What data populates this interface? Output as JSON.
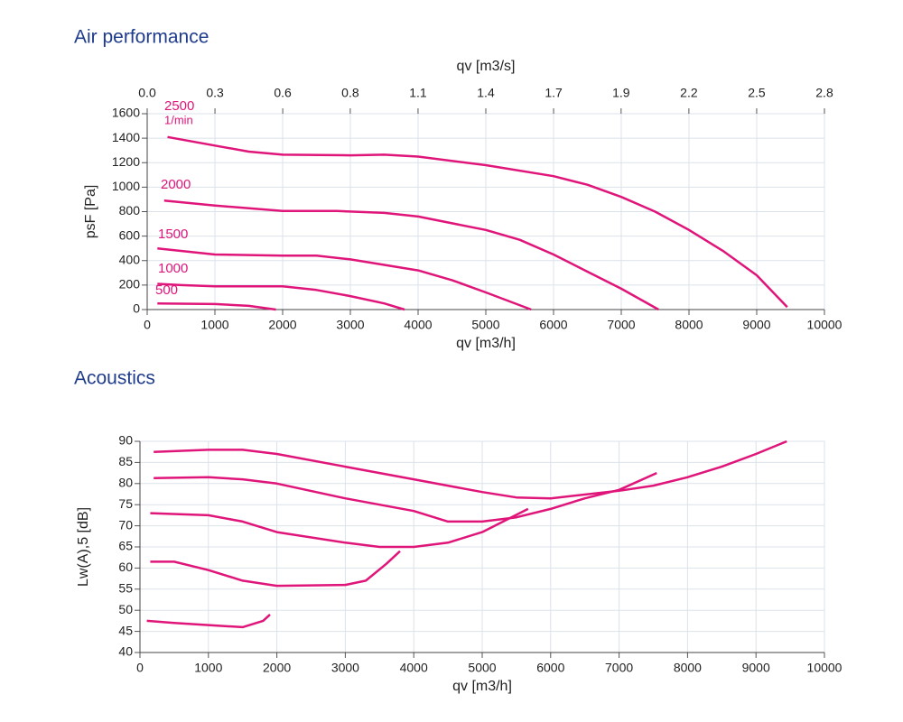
{
  "chart_data": [
    {
      "type": "line",
      "title": "Air performance",
      "x_label": "qv [m3/h]",
      "y_label": "psF [Pa]",
      "x2_label": "qv [m3/s]",
      "unit_label": "1/min",
      "xlim": [
        0,
        10000
      ],
      "xticks": [
        0,
        1000,
        2000,
        3000,
        4000,
        5000,
        6000,
        7000,
        8000,
        9000,
        10000
      ],
      "x2lim": [
        0,
        2.778
      ],
      "x2ticks": [
        {
          "value": 0,
          "label": "0.0"
        },
        {
          "value": 0.278,
          "label": "0.3"
        },
        {
          "value": 0.556,
          "label": "0.6"
        },
        {
          "value": 0.833,
          "label": "0.8"
        },
        {
          "value": 1.111,
          "label": "1.1"
        },
        {
          "value": 1.389,
          "label": "1.4"
        },
        {
          "value": 1.667,
          "label": "1.7"
        },
        {
          "value": 1.944,
          "label": "1.9"
        },
        {
          "value": 2.222,
          "label": "2.2"
        },
        {
          "value": 2.5,
          "label": "2.5"
        },
        {
          "value": 2.778,
          "label": "2.8"
        }
      ],
      "ylim": [
        0,
        1600
      ],
      "yticks": [
        0,
        200,
        400,
        600,
        800,
        1000,
        1200,
        1400,
        1600
      ],
      "grid": true,
      "series": [
        {
          "name": "2500",
          "color": "#e0157a",
          "x": [
            300,
            1000,
            1500,
            2000,
            3000,
            3500,
            4000,
            5000,
            6000,
            6500,
            7000,
            7500,
            8000,
            8500,
            9000,
            9450
          ],
          "values": [
            1410,
            1340,
            1290,
            1265,
            1260,
            1265,
            1250,
            1180,
            1090,
            1020,
            920,
            800,
            650,
            480,
            280,
            20
          ]
        },
        {
          "name": "2000",
          "color": "#e0157a",
          "x": [
            250,
            1000,
            2000,
            2800,
            3500,
            4000,
            5000,
            5500,
            6000,
            6500,
            7000,
            7550
          ],
          "values": [
            890,
            850,
            805,
            805,
            790,
            760,
            650,
            570,
            450,
            310,
            170,
            0
          ]
        },
        {
          "name": "1500",
          "color": "#e0157a",
          "x": [
            150,
            1000,
            2000,
            2500,
            3000,
            4000,
            4500,
            5000,
            5670
          ],
          "values": [
            500,
            450,
            440,
            440,
            410,
            320,
            240,
            140,
            0
          ]
        },
        {
          "name": "1000",
          "color": "#e0157a",
          "x": [
            150,
            500,
            1000,
            2000,
            2500,
            3000,
            3500,
            3800
          ],
          "values": [
            210,
            200,
            190,
            190,
            160,
            110,
            50,
            0
          ]
        },
        {
          "name": "500",
          "color": "#e0157a",
          "x": [
            150,
            1000,
            1500,
            1900
          ],
          "values": [
            50,
            45,
            30,
            0
          ]
        }
      ]
    },
    {
      "type": "line",
      "title": "Acoustics",
      "x_label": "qv [m3/h]",
      "y_label": "Lw(A),5 [dB]",
      "xlim": [
        0,
        10000
      ],
      "xticks": [
        0,
        1000,
        2000,
        3000,
        4000,
        5000,
        6000,
        7000,
        8000,
        9000,
        10000
      ],
      "ylim": [
        40,
        90
      ],
      "yticks": [
        40,
        45,
        50,
        55,
        60,
        65,
        70,
        75,
        80,
        85,
        90
      ],
      "grid": true,
      "series": [
        {
          "color": "#e0157a",
          "x": [
            200,
            1000,
            1500,
            2000,
            3000,
            4000,
            5000,
            5500,
            6000,
            7000,
            7500,
            8000,
            8500,
            9000,
            9450
          ],
          "values": [
            87.5,
            88,
            88,
            87,
            84,
            81,
            78,
            76.7,
            76.5,
            78.3,
            79.5,
            81.5,
            84,
            87,
            90
          ]
        },
        {
          "color": "#e0157a",
          "x": [
            200,
            1000,
            1500,
            2000,
            3000,
            4000,
            4500,
            5000,
            5500,
            6000,
            6500,
            7000,
            7550
          ],
          "values": [
            81.3,
            81.5,
            81,
            80,
            76.5,
            73.5,
            71,
            71,
            72,
            74,
            76.5,
            78.5,
            82.5
          ]
        },
        {
          "color": "#e0157a",
          "x": [
            150,
            1000,
            1500,
            2000,
            3000,
            3500,
            4000,
            4500,
            5000,
            5670
          ],
          "values": [
            73,
            72.5,
            71,
            68.5,
            66,
            65,
            65,
            66,
            68.5,
            74
          ]
        },
        {
          "color": "#e0157a",
          "x": [
            150,
            500,
            1000,
            1500,
            2000,
            3000,
            3300,
            3600,
            3800
          ],
          "values": [
            61.5,
            61.5,
            59.5,
            57,
            55.8,
            56,
            57,
            61,
            64
          ]
        },
        {
          "color": "#e0157a",
          "x": [
            100,
            500,
            1000,
            1500,
            1800,
            1900
          ],
          "values": [
            47.5,
            47,
            46.5,
            46,
            47.5,
            49
          ]
        }
      ]
    }
  ]
}
